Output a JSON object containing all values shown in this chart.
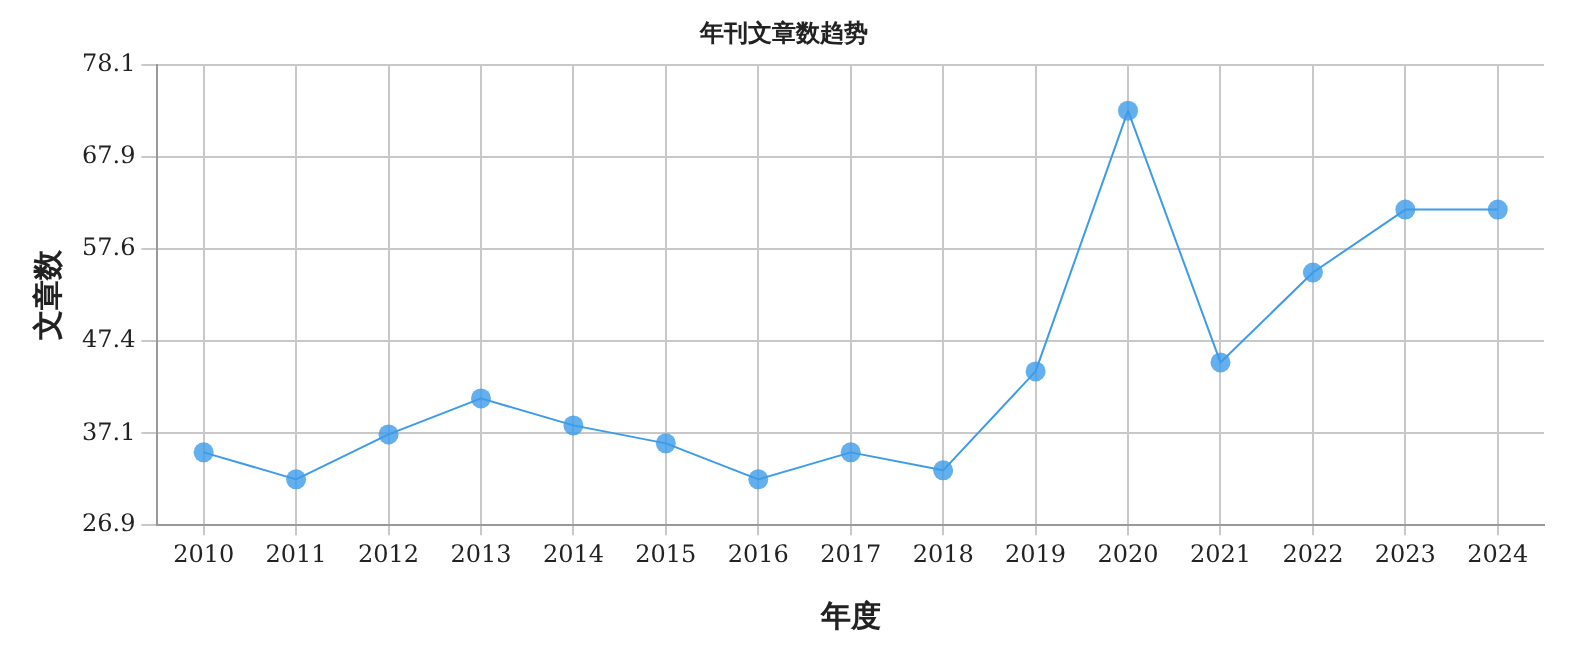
{
  "chart_data": {
    "type": "line",
    "title": "年刊文章数趋势",
    "xlabel": "年度",
    "ylabel": "文章数",
    "categories": [
      "2010",
      "2011",
      "2012",
      "2013",
      "2014",
      "2015",
      "2016",
      "2017",
      "2018",
      "2019",
      "2020",
      "2021",
      "2022",
      "2023",
      "2024"
    ],
    "series": [
      {
        "color": "#3d9be9",
        "values": [
          35,
          32,
          37,
          41,
          38,
          36,
          32,
          35,
          33,
          44,
          73,
          45,
          55,
          62,
          62
        ]
      }
    ],
    "ylim": [
      26.9,
      78.1
    ],
    "yticks": [
      26.9,
      37.1,
      47.4,
      57.6,
      67.9,
      78.1
    ],
    "grid": true,
    "marker": "circle",
    "line_style": "solid",
    "legend": false
  }
}
